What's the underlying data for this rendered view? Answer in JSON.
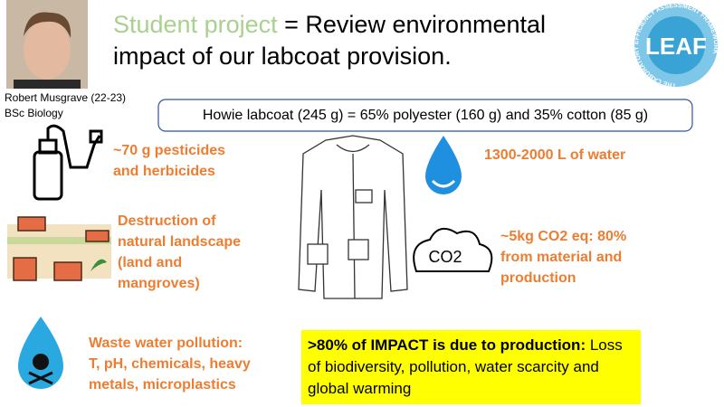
{
  "title": {
    "highlight": "Student project",
    "rest_line1": "= Review environmental",
    "rest_line2": "impact of our labcoat provision."
  },
  "presenter": {
    "name": "Robert Musgrave (22-23)",
    "degree": "BSc Biology"
  },
  "logo": {
    "text": "LEAF",
    "ring": "THE LABORATORY EFFICIENCY ASSESSMENT FRAMEWORK"
  },
  "composition": "Howie labcoat (245 g) = 65% polyester (160 g) and 35% cotton (85 g)",
  "impacts": [
    {
      "lines": [
        "~70 g pesticides",
        "and herbicides"
      ]
    },
    {
      "lines": [
        "1300-2000 L of water"
      ]
    },
    {
      "lines": [
        "Destruction of",
        "natural landscape",
        "(land and",
        "mangroves)"
      ]
    },
    {
      "lines": [
        "~5kg CO2 eq: 80%",
        "from material and",
        "production"
      ]
    },
    {
      "lines": [
        "Waste water pollution:",
        "T, pH, chemicals, heavy",
        "metals, microplastics"
      ]
    }
  ],
  "co2_icon": "CO2",
  "conclusion": {
    "bold": ">80% of IMPACT is due to production:",
    "rest": "Loss of biodiversity, pollution, water scarcity and global warming"
  }
}
